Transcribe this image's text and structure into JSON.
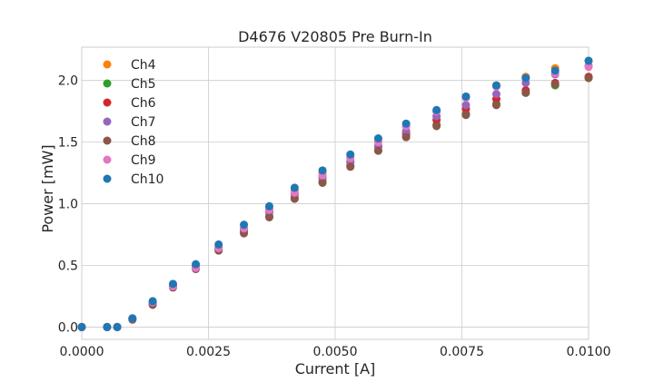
{
  "chart_data": {
    "type": "scatter",
    "title": "D4676 V20805 Pre Burn-In",
    "xlabel": "Current [A]",
    "ylabel": "Power [mW]",
    "xlim": [
      0.0,
      0.01
    ],
    "ylim": [
      -0.1,
      2.27
    ],
    "xticks": [
      0.0,
      0.0025,
      0.005,
      0.0075,
      0.01
    ],
    "xtick_labels": [
      "0.0000",
      "0.0025",
      "0.0050",
      "0.0075",
      "0.0100"
    ],
    "yticks": [
      0.0,
      0.5,
      1.0,
      1.5,
      2.0
    ],
    "ytick_labels": [
      "0.0",
      "0.5",
      "1.0",
      "1.5",
      "2.0"
    ],
    "grid": true,
    "legend_position": "top-left",
    "series": [
      {
        "name": "Ch4",
        "color": "#ff7f0e",
        "x": [
          0.0,
          0.0005,
          0.0007,
          0.001,
          0.0014,
          0.0018,
          0.00225,
          0.0027,
          0.0032,
          0.0037,
          0.0042,
          0.00475,
          0.0053,
          0.00585,
          0.0064,
          0.007,
          0.00758,
          0.00818,
          0.00876,
          0.00934,
          0.01
        ],
        "y": [
          0.0,
          0.0,
          0.0,
          0.07,
          0.2,
          0.34,
          0.49,
          0.65,
          0.8,
          0.96,
          1.11,
          1.25,
          1.38,
          1.51,
          1.63,
          1.75,
          1.86,
          1.96,
          2.03,
          2.1,
          2.16
        ]
      },
      {
        "name": "Ch5",
        "color": "#2ca02c",
        "x": [
          0.0,
          0.0005,
          0.0007,
          0.001,
          0.0014,
          0.0018,
          0.00225,
          0.0027,
          0.0032,
          0.0037,
          0.0042,
          0.00475,
          0.0053,
          0.00585,
          0.0064,
          0.007,
          0.00758,
          0.00818,
          0.00876,
          0.00934,
          0.01
        ],
        "y": [
          0.0,
          0.0,
          0.0,
          0.07,
          0.19,
          0.33,
          0.48,
          0.63,
          0.77,
          0.9,
          1.05,
          1.18,
          1.31,
          1.43,
          1.55,
          1.64,
          1.73,
          1.81,
          1.9,
          1.96,
          2.02
        ]
      },
      {
        "name": "Ch6",
        "color": "#d62728",
        "x": [
          0.0,
          0.0005,
          0.0007,
          0.001,
          0.0014,
          0.0018,
          0.00225,
          0.0027,
          0.0032,
          0.0037,
          0.0042,
          0.00475,
          0.0053,
          0.00585,
          0.0064,
          0.007,
          0.00758,
          0.00818,
          0.00876,
          0.00934,
          0.01
        ],
        "y": [
          0.0,
          0.0,
          0.0,
          0.07,
          0.2,
          0.34,
          0.49,
          0.64,
          0.79,
          0.94,
          1.08,
          1.21,
          1.34,
          1.46,
          1.57,
          1.68,
          1.77,
          1.85,
          1.92,
          1.98,
          2.03
        ]
      },
      {
        "name": "Ch7",
        "color": "#9467bd",
        "x": [
          0.0,
          0.0005,
          0.0007,
          0.001,
          0.0014,
          0.0018,
          0.00225,
          0.0027,
          0.0032,
          0.0037,
          0.0042,
          0.00475,
          0.0053,
          0.00585,
          0.0064,
          0.007,
          0.00758,
          0.00818,
          0.00876,
          0.00934,
          0.01
        ],
        "y": [
          0.0,
          0.0,
          0.0,
          0.07,
          0.19,
          0.33,
          0.48,
          0.63,
          0.78,
          0.93,
          1.07,
          1.21,
          1.34,
          1.47,
          1.59,
          1.71,
          1.8,
          1.89,
          1.98,
          2.05,
          2.12
        ]
      },
      {
        "name": "Ch8",
        "color": "#8c564b",
        "x": [
          0.0,
          0.0005,
          0.0007,
          0.001,
          0.0014,
          0.0018,
          0.00225,
          0.0027,
          0.0032,
          0.0037,
          0.0042,
          0.00475,
          0.0053,
          0.00585,
          0.0064,
          0.007,
          0.00758,
          0.00818,
          0.00876,
          0.00934,
          0.01
        ],
        "y": [
          0.0,
          0.0,
          0.0,
          0.06,
          0.18,
          0.32,
          0.47,
          0.62,
          0.76,
          0.89,
          1.04,
          1.17,
          1.3,
          1.43,
          1.54,
          1.63,
          1.72,
          1.8,
          1.9,
          1.97,
          2.02
        ]
      },
      {
        "name": "Ch9",
        "color": "#e377c2",
        "x": [
          0.0,
          0.0005,
          0.0007,
          0.001,
          0.0014,
          0.0018,
          0.00225,
          0.0027,
          0.0032,
          0.0037,
          0.0042,
          0.00475,
          0.0053,
          0.00585,
          0.0064,
          0.007,
          0.00758,
          0.00818,
          0.00876,
          0.00934,
          0.01
        ],
        "y": [
          0.0,
          0.0,
          0.0,
          0.07,
          0.2,
          0.33,
          0.48,
          0.64,
          0.8,
          0.95,
          1.09,
          1.23,
          1.37,
          1.5,
          1.63,
          1.75,
          1.86,
          1.95,
          2.02,
          2.06,
          2.11
        ]
      },
      {
        "name": "Ch10",
        "color": "#1f77b4",
        "x": [
          0.0,
          0.0005,
          0.0007,
          0.001,
          0.0014,
          0.0018,
          0.00225,
          0.0027,
          0.0032,
          0.0037,
          0.0042,
          0.00475,
          0.0053,
          0.00585,
          0.0064,
          0.007,
          0.00758,
          0.00818,
          0.00876,
          0.00934,
          0.01
        ],
        "y": [
          0.0,
          0.0,
          0.0,
          0.07,
          0.21,
          0.35,
          0.51,
          0.67,
          0.83,
          0.98,
          1.13,
          1.27,
          1.4,
          1.53,
          1.65,
          1.76,
          1.87,
          1.96,
          2.02,
          2.08,
          2.16
        ]
      }
    ]
  }
}
